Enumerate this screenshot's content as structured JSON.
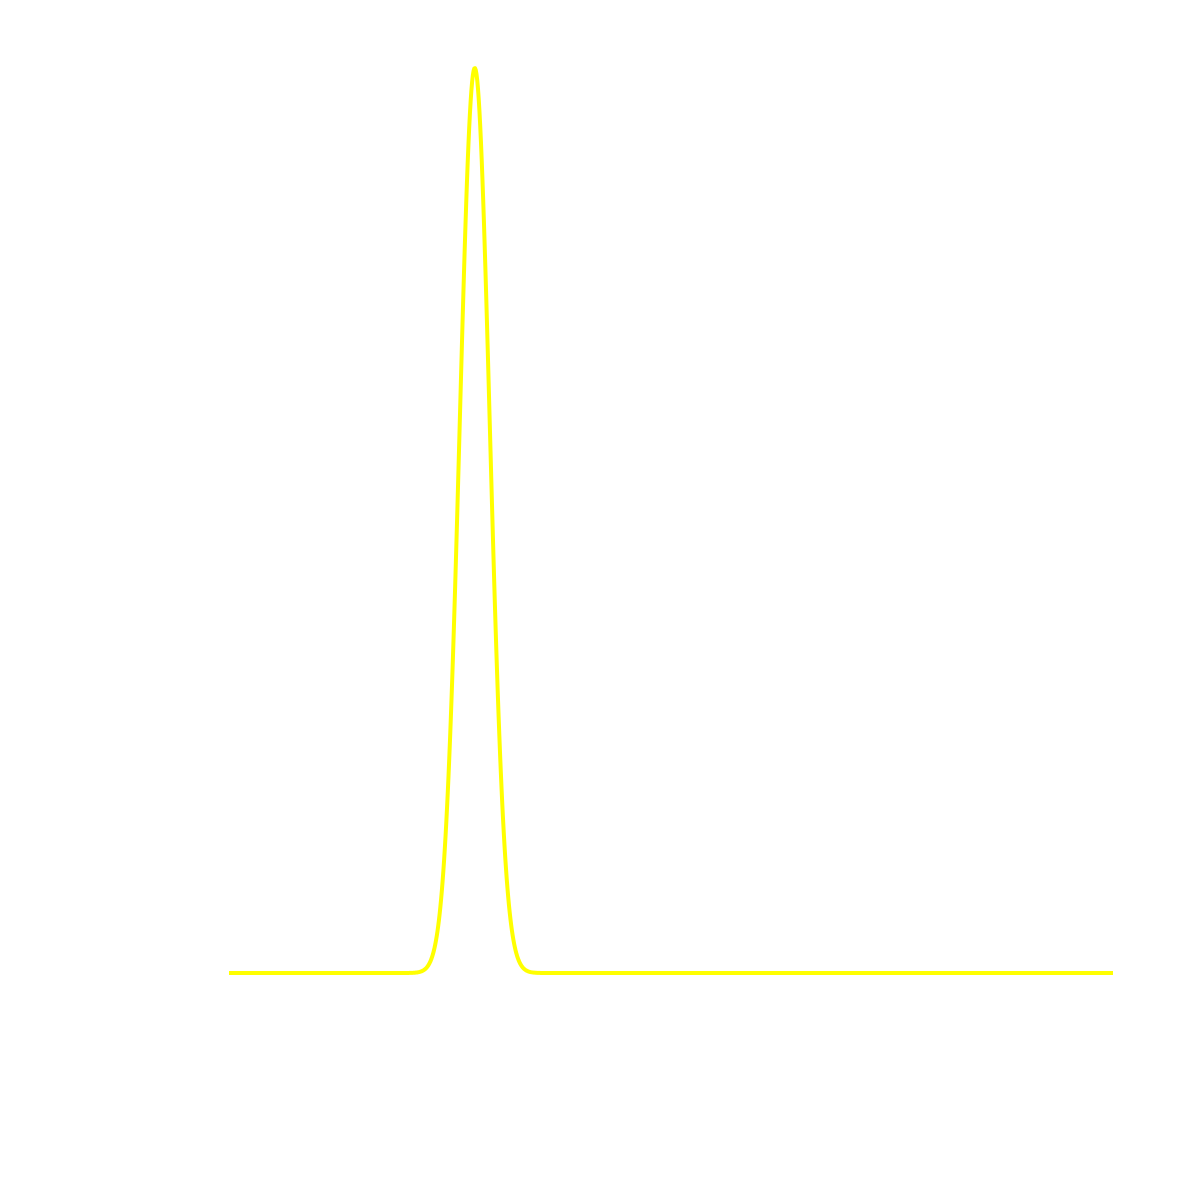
{
  "chart_data": {
    "type": "line",
    "title": "",
    "xlabel": "",
    "ylabel": "",
    "xlim": [
      0,
      100
    ],
    "ylim": [
      0,
      1
    ],
    "grid": false,
    "axes_visible": false,
    "legend": "none",
    "series": [
      {
        "color": "#ffff00",
        "curve": "gaussian",
        "peak_x": 27.8,
        "peak_y": 1.0,
        "sigma": 1.7,
        "baseline_y": 0.0,
        "x_start": 0,
        "x_end": 100
      }
    ]
  }
}
